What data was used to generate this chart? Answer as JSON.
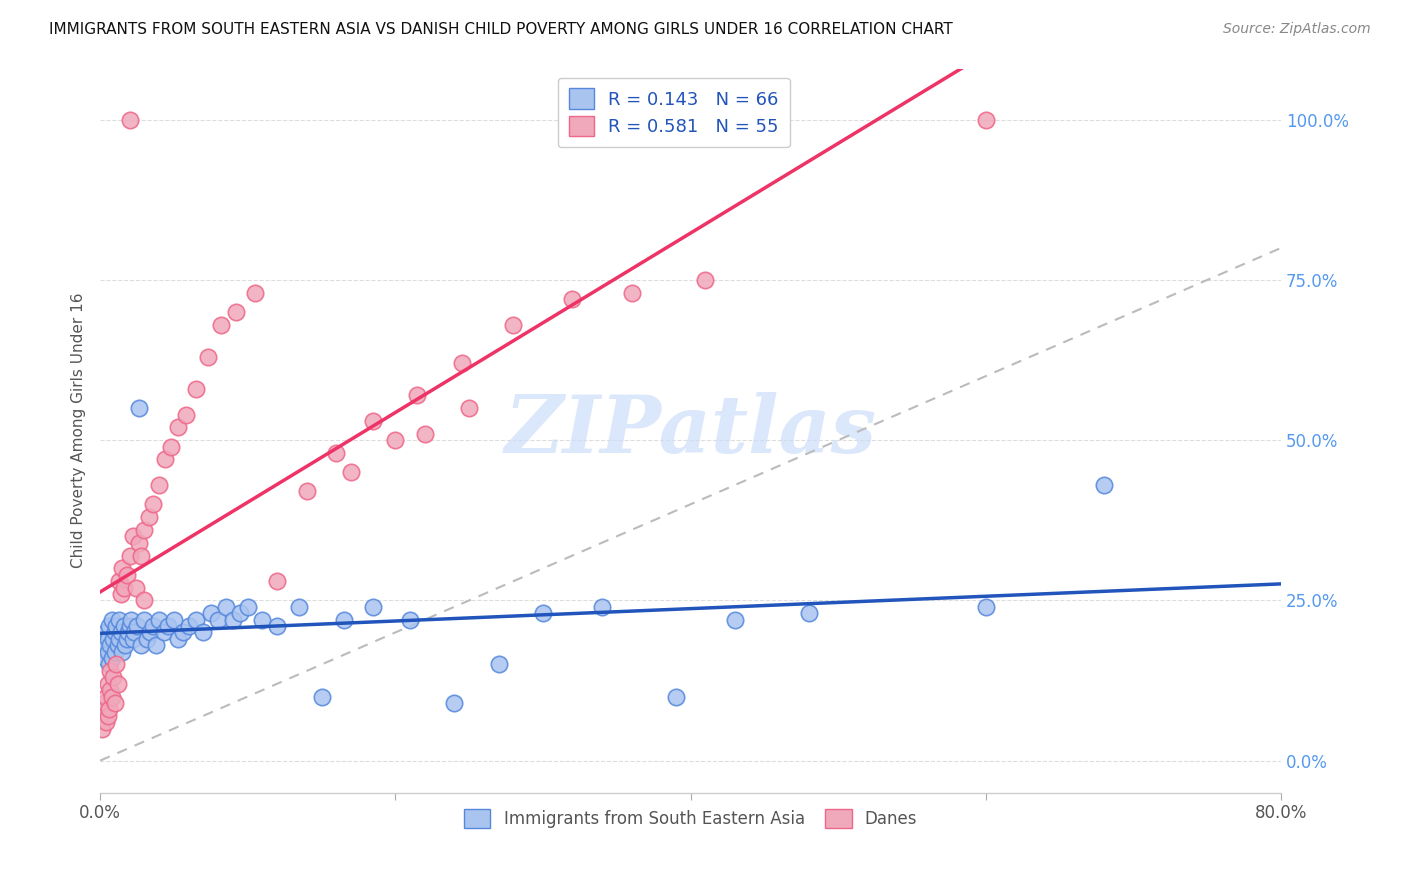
{
  "title": "IMMIGRANTS FROM SOUTH EASTERN ASIA VS DANISH CHILD POVERTY AMONG GIRLS UNDER 16 CORRELATION CHART",
  "source": "Source: ZipAtlas.com",
  "ylabel": "Child Poverty Among Girls Under 16",
  "x_min": 0.0,
  "x_max": 0.8,
  "y_min": -0.05,
  "y_max": 1.08,
  "legend_labels": [
    "Immigrants from South Eastern Asia",
    "Danes"
  ],
  "blue_fill": "#aac4f0",
  "pink_fill": "#f0a8bb",
  "blue_edge": "#5588dd",
  "pink_edge": "#ee6688",
  "blue_line_color": "#2255bb",
  "pink_line_color": "#ee3366",
  "diag_line_color": "#bbbbbb",
  "watermark_text": "ZIPatlas",
  "watermark_color": "#ccddf8",
  "R_blue": 0.143,
  "N_blue": 66,
  "R_pink": 0.581,
  "N_pink": 55,
  "blue_x": [
    0.002,
    0.003,
    0.004,
    0.005,
    0.005,
    0.006,
    0.006,
    0.007,
    0.008,
    0.008,
    0.009,
    0.01,
    0.01,
    0.011,
    0.012,
    0.013,
    0.013,
    0.014,
    0.015,
    0.016,
    0.017,
    0.018,
    0.019,
    0.02,
    0.021,
    0.022,
    0.023,
    0.025,
    0.026,
    0.028,
    0.03,
    0.032,
    0.034,
    0.036,
    0.038,
    0.04,
    0.043,
    0.046,
    0.05,
    0.053,
    0.056,
    0.06,
    0.065,
    0.07,
    0.075,
    0.08,
    0.085,
    0.09,
    0.095,
    0.1,
    0.11,
    0.12,
    0.135,
    0.15,
    0.165,
    0.185,
    0.21,
    0.24,
    0.27,
    0.3,
    0.34,
    0.39,
    0.43,
    0.48,
    0.6,
    0.68
  ],
  "blue_y": [
    0.18,
    0.16,
    0.2,
    0.17,
    0.19,
    0.21,
    0.15,
    0.18,
    0.22,
    0.16,
    0.19,
    0.17,
    0.2,
    0.21,
    0.18,
    0.19,
    0.22,
    0.2,
    0.17,
    0.21,
    0.18,
    0.19,
    0.2,
    0.21,
    0.22,
    0.19,
    0.2,
    0.21,
    0.55,
    0.18,
    0.22,
    0.19,
    0.2,
    0.21,
    0.18,
    0.22,
    0.2,
    0.21,
    0.22,
    0.19,
    0.2,
    0.21,
    0.22,
    0.2,
    0.23,
    0.22,
    0.24,
    0.22,
    0.23,
    0.24,
    0.22,
    0.21,
    0.24,
    0.1,
    0.22,
    0.24,
    0.22,
    0.09,
    0.15,
    0.23,
    0.24,
    0.1,
    0.22,
    0.23,
    0.24,
    0.43
  ],
  "pink_x": [
    0.001,
    0.002,
    0.003,
    0.004,
    0.004,
    0.005,
    0.005,
    0.006,
    0.007,
    0.007,
    0.008,
    0.009,
    0.01,
    0.011,
    0.012,
    0.013,
    0.014,
    0.015,
    0.016,
    0.018,
    0.02,
    0.022,
    0.024,
    0.026,
    0.028,
    0.03,
    0.033,
    0.036,
    0.04,
    0.044,
    0.048,
    0.053,
    0.058,
    0.065,
    0.073,
    0.082,
    0.092,
    0.105,
    0.12,
    0.14,
    0.16,
    0.185,
    0.215,
    0.245,
    0.28,
    0.32,
    0.36,
    0.41,
    0.03,
    0.17,
    0.2,
    0.22,
    0.25,
    0.02,
    0.6
  ],
  "pink_y": [
    0.05,
    0.08,
    0.09,
    0.06,
    0.1,
    0.07,
    0.12,
    0.08,
    0.11,
    0.14,
    0.1,
    0.13,
    0.09,
    0.15,
    0.12,
    0.28,
    0.26,
    0.3,
    0.27,
    0.29,
    0.32,
    0.35,
    0.27,
    0.34,
    0.32,
    0.36,
    0.38,
    0.4,
    0.43,
    0.47,
    0.49,
    0.52,
    0.54,
    0.58,
    0.63,
    0.68,
    0.7,
    0.73,
    0.28,
    0.42,
    0.48,
    0.53,
    0.57,
    0.62,
    0.68,
    0.72,
    0.73,
    0.75,
    0.25,
    0.45,
    0.5,
    0.51,
    0.55,
    1.0,
    1.0
  ]
}
